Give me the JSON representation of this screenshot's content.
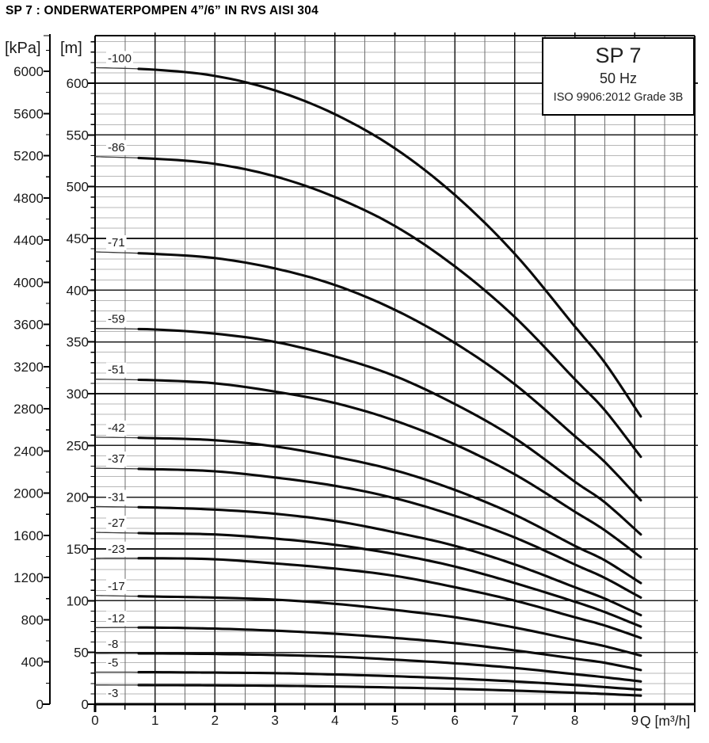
{
  "page": {
    "title": "SP 7 : ONDERWATERPOMPEN 4”/6” IN RVS AISI 304"
  },
  "info_box": {
    "model": "SP 7",
    "frequency": "50 Hz",
    "standard": "ISO 9906:2012 Grade 3B"
  },
  "chart_data": {
    "type": "line",
    "title": "SP 7",
    "subtitle": "50 Hz",
    "standard": "ISO 9906:2012 Grade 3B",
    "x_axis": {
      "label": "Q [m³/h]",
      "min": 0,
      "max": 10,
      "major_step": 1,
      "minor_step": 0.5,
      "tick_labels": [
        "0",
        "1",
        "2",
        "3",
        "4",
        "5",
        "6",
        "7",
        "8",
        "9"
      ]
    },
    "y_axis_m": {
      "label": "[m]",
      "min": 0,
      "max": 640,
      "major_step": 50,
      "minor_step": 10,
      "tick_labels": [
        "0",
        "50",
        "100",
        "150",
        "200",
        "250",
        "300",
        "350",
        "400",
        "450",
        "500",
        "550",
        "600"
      ]
    },
    "y_axis_kpa": {
      "label": "[kPa]",
      "min": 0,
      "max": 6300,
      "major_step": 400,
      "minor_step": 200,
      "tick_labels": [
        "0",
        "400",
        "800",
        "1200",
        "1600",
        "2000",
        "2400",
        "2800",
        "3200",
        "3600",
        "4000",
        "4400",
        "4800",
        "5200",
        "5600",
        "6000"
      ]
    },
    "legend": "inline-curve-labels",
    "grid": true,
    "q_values_m3h": [
      0,
      1,
      2,
      3,
      4,
      5,
      6,
      7,
      8,
      8.5,
      9.1
    ],
    "series": [
      {
        "name": "-100",
        "head_m": [
          615,
          613,
          607,
          593,
          570,
          537,
          492,
          435,
          365,
          330,
          278
        ]
      },
      {
        "name": "-86",
        "head_m": [
          529,
          527,
          522,
          510,
          490,
          462,
          423,
          374,
          314,
          284,
          239
        ]
      },
      {
        "name": "-71",
        "head_m": [
          437,
          435,
          431,
          421,
          405,
          381,
          349,
          309,
          259,
          234,
          197
        ]
      },
      {
        "name": "-59",
        "head_m": [
          363,
          362,
          358,
          350,
          336,
          317,
          290,
          257,
          215,
          195,
          164
        ]
      },
      {
        "name": "-51",
        "head_m": [
          314,
          313,
          310,
          302,
          291,
          274,
          251,
          222,
          186,
          168,
          142
        ]
      },
      {
        "name": "-42",
        "head_m": [
          258,
          257,
          255,
          249,
          239,
          226,
          207,
          183,
          153,
          139,
          117
        ]
      },
      {
        "name": "-37",
        "head_m": [
          228,
          227,
          225,
          219,
          211,
          199,
          182,
          161,
          135,
          122,
          103
        ]
      },
      {
        "name": "-31",
        "head_m": [
          191,
          190,
          188,
          184,
          177,
          166,
          153,
          135,
          113,
          102,
          86
        ]
      },
      {
        "name": "-27",
        "head_m": [
          166,
          165,
          164,
          160,
          154,
          145,
          133,
          117,
          99,
          89,
          75
        ]
      },
      {
        "name": "-23",
        "head_m": [
          141,
          141,
          140,
          136,
          131,
          124,
          113,
          100,
          84,
          76,
          64
        ]
      },
      {
        "name": "-17",
        "head_m": [
          105,
          104,
          103,
          101,
          97,
          91,
          84,
          74,
          62,
          56,
          47
        ]
      },
      {
        "name": "-12",
        "head_m": [
          74,
          74,
          73,
          71,
          68,
          64,
          59,
          52,
          44,
          40,
          33
        ]
      },
      {
        "name": "-8",
        "head_m": [
          49,
          49,
          48.5,
          47.5,
          46,
          43,
          39.5,
          35,
          29,
          26,
          22
        ]
      },
      {
        "name": "-5",
        "head_m": [
          31,
          30.9,
          30.5,
          30,
          28.7,
          27,
          24.8,
          22,
          18.5,
          16.5,
          14
        ]
      },
      {
        "name": "-3",
        "head_m": [
          18.5,
          18.4,
          18.2,
          17.8,
          17.1,
          16.1,
          14.8,
          13.1,
          11.0,
          9.9,
          8.3
        ]
      }
    ],
    "style": {
      "thick_from_q": 0.7,
      "curve_color": "#0b0b0b",
      "curve_thin_color": "#3a3a3a",
      "grid_minor_h_color": "#b7b7b7",
      "grid_minor_v_color": "#6e6e6e",
      "grid_major_color": "#1f1f1f",
      "axis_color": "#000000",
      "label_color": "#1a1a1a"
    }
  }
}
